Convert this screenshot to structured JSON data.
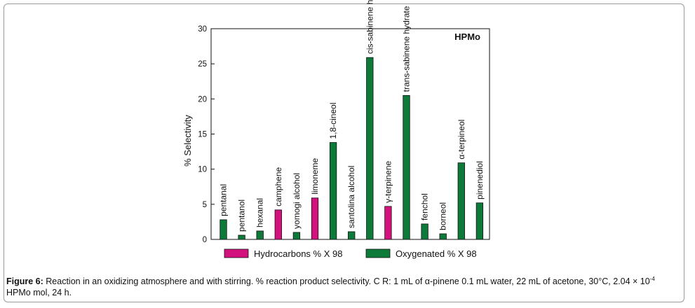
{
  "chart_data": {
    "type": "bar",
    "title": "HPMo",
    "ylabel": "% Selectivity",
    "xlabel": "",
    "ylim": [
      0,
      30
    ],
    "yticks": [
      0,
      5,
      10,
      15,
      20,
      25,
      30
    ],
    "grid": false,
    "legend_position": "bottom",
    "series": [
      {
        "name": "Hydrocarbons  % X 98",
        "color": "#d4127e"
      },
      {
        "name": "Oxygenated % X 98",
        "color": "#0d7a3a"
      }
    ],
    "categories": [
      {
        "label": "pentanal",
        "value": 2.8,
        "series": 1
      },
      {
        "label": "pentanol",
        "value": 0.6,
        "series": 1
      },
      {
        "label": "hexanal",
        "value": 1.2,
        "series": 1
      },
      {
        "label": "camphene",
        "value": 4.2,
        "series": 0
      },
      {
        "label": "yomogi alcohol",
        "value": 1.0,
        "series": 1
      },
      {
        "label": "limoneme",
        "value": 5.9,
        "series": 0
      },
      {
        "label": "1,8-cineol",
        "value": 13.8,
        "series": 1
      },
      {
        "label": "santolina alcohol",
        "value": 1.1,
        "series": 1
      },
      {
        "label": "cis-sabinene hydrate",
        "value": 25.9,
        "series": 1
      },
      {
        "label": "γ-terpinene",
        "value": 4.7,
        "series": 0
      },
      {
        "label": "trans-sabinene hydrate",
        "value": 20.5,
        "series": 1
      },
      {
        "label": "fenchol",
        "value": 2.2,
        "series": 1
      },
      {
        "label": "borneol",
        "value": 0.8,
        "series": 1
      },
      {
        "label": "α-terpineol",
        "value": 10.9,
        "series": 1
      },
      {
        "label": "pinenediol",
        "value": 5.2,
        "series": 1
      }
    ]
  },
  "caption": {
    "label": "Figure 6:",
    "text_before_exp": " Reaction in an oxidizing atmosphere and with stirring. % reaction product selectivity. C R: 1 mL of α-pinene 0.1 mL water, 22 mL of acetone, 30°C, 2.04 × 10",
    "exponent": "-4",
    "text_after_exp": " HPMo mol, 24 h."
  }
}
